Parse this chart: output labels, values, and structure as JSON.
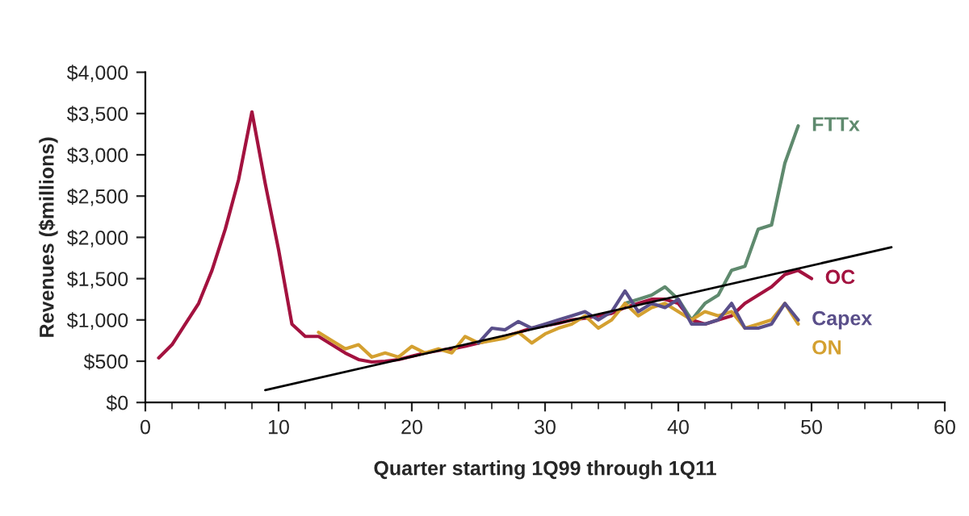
{
  "chart_data": {
    "type": "line",
    "xlabel": "Quarter starting 1Q99 through 1Q11",
    "ylabel": "Revenues ($millions)",
    "x": [
      1,
      2,
      3,
      4,
      5,
      6,
      7,
      8,
      9,
      10,
      11,
      12,
      13,
      14,
      15,
      16,
      17,
      18,
      19,
      20,
      21,
      22,
      23,
      24,
      25,
      26,
      27,
      28,
      29,
      30,
      31,
      32,
      33,
      34,
      35,
      36,
      37,
      38,
      39,
      40,
      41,
      42,
      43,
      44,
      45,
      46,
      47,
      48,
      49,
      50
    ],
    "series": [
      {
        "name": "OC",
        "color": "#a3123f",
        "values": [
          540,
          700,
          950,
          1200,
          1600,
          2100,
          2700,
          3520,
          2650,
          1850,
          950,
          800,
          800,
          700,
          600,
          520,
          490,
          500,
          520,
          560,
          600,
          630,
          650,
          680,
          720,
          760,
          800,
          850,
          900,
          930,
          960,
          1000,
          1020,
          1050,
          1080,
          1150,
          1200,
          1250,
          1250,
          1200,
          1000,
          950,
          1000,
          1050,
          1200,
          1300,
          1400,
          1550,
          1600,
          1500
        ]
      },
      {
        "name": "FTTx",
        "color": "#5f8a6e",
        "values": [
          null,
          null,
          null,
          null,
          null,
          null,
          null,
          null,
          null,
          null,
          null,
          null,
          null,
          null,
          null,
          null,
          null,
          null,
          null,
          null,
          null,
          null,
          null,
          null,
          null,
          null,
          null,
          null,
          null,
          null,
          null,
          null,
          null,
          null,
          null,
          1200,
          1250,
          1300,
          1400,
          1250,
          1000,
          1200,
          1300,
          1600,
          1650,
          2100,
          2150,
          2900,
          3350,
          null
        ]
      },
      {
        "name": "ON",
        "color": "#d4a030",
        "values": [
          null,
          null,
          null,
          null,
          null,
          null,
          null,
          null,
          null,
          null,
          null,
          null,
          850,
          750,
          650,
          700,
          550,
          600,
          550,
          680,
          600,
          650,
          600,
          800,
          720,
          750,
          780,
          850,
          720,
          830,
          900,
          950,
          1050,
          900,
          1000,
          1200,
          1050,
          1150,
          1200,
          1100,
          1000,
          1100,
          1050,
          1100,
          900,
          950,
          1000,
          1200,
          950,
          null
        ]
      },
      {
        "name": "Capex",
        "color": "#5a4f8a",
        "values": [
          null,
          null,
          null,
          null,
          null,
          null,
          null,
          null,
          null,
          null,
          null,
          null,
          null,
          null,
          null,
          null,
          null,
          null,
          null,
          null,
          null,
          null,
          null,
          null,
          720,
          900,
          880,
          980,
          900,
          950,
          1000,
          1050,
          1100,
          1000,
          1100,
          1350,
          1100,
          1200,
          1150,
          1250,
          950,
          950,
          1000,
          1200,
          900,
          900,
          950,
          1200,
          1000,
          null
        ]
      },
      {
        "type": "line",
        "color": "#000000",
        "x": [
          9,
          56
        ],
        "values": [
          150,
          1880
        ]
      }
    ],
    "xlim": [
      0,
      60
    ],
    "xticks": [
      0,
      10,
      20,
      30,
      40,
      50,
      60
    ],
    "ylim": [
      0,
      4000
    ],
    "yticks": [
      {
        "value": 0,
        "label": "$0"
      },
      {
        "value": 500,
        "label": "$500"
      },
      {
        "value": 1000,
        "label": "$1,000"
      },
      {
        "value": 1500,
        "label": "$1,500"
      },
      {
        "value": 2000,
        "label": "$2,000"
      },
      {
        "value": 2500,
        "label": "$2,500"
      },
      {
        "value": 3000,
        "label": "$3,000"
      },
      {
        "value": 3500,
        "label": "$3,500"
      },
      {
        "value": 4000,
        "label": "$4,000"
      }
    ],
    "grid": false,
    "legend": false
  }
}
